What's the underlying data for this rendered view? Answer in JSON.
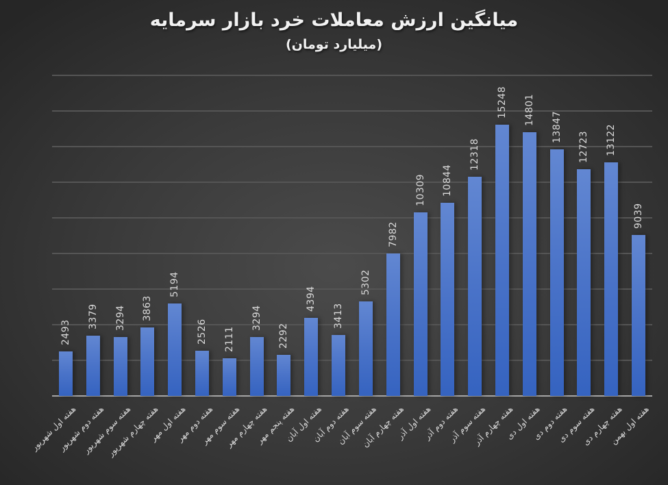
{
  "chart": {
    "title": "میانگین ارزش معاملات خرد بازار سرمایه",
    "subtitle": "(میلیارد تومان)"
  },
  "colors": {
    "bar": "#4472C4",
    "background": "#3a3a3a",
    "gridline": "#555555",
    "text": "#d9d9d9"
  },
  "chart_data": {
    "type": "bar",
    "title": "میانگین ارزش معاملات خرد بازار سرمایه",
    "subtitle": "(میلیارد تومان)",
    "xlabel": "",
    "ylabel": "",
    "ylim": [
      0,
      18000
    ],
    "grid": true,
    "gridline_step": 2000,
    "y_axis_labels_visible": false,
    "data_labels": true,
    "legend": "none",
    "categories": [
      "هفته اول شهریور",
      "هفته دوم شهریور",
      "هفته سوم شهریور",
      "هفته چهارم شهریور",
      "هفته اول مهر",
      "هفته دوم مهر",
      "هفته سوم مهر",
      "هفته چهارم مهر",
      "هفته پنجم مهر",
      "هفته اول آبان",
      "هفته دوم آبان",
      "هفته سوم آبان",
      "هفته چهارم آبان",
      "هفته اول آذر",
      "هفته دوم آذر",
      "هفته سوم آذر",
      "هفته چهارم آذر",
      "هفته اول دی",
      "هفته دوم دی",
      "هفته سوم دی",
      "هفته چهارم دی",
      "هفته اول بهمن"
    ],
    "values": [
      2493,
      3379,
      3294,
      3863,
      5194,
      2526,
      2111,
      3294,
      2292,
      4394,
      3413,
      5302,
      7982,
      10309,
      10844,
      12318,
      15248,
      14801,
      13847,
      12723,
      13122,
      9039
    ]
  }
}
